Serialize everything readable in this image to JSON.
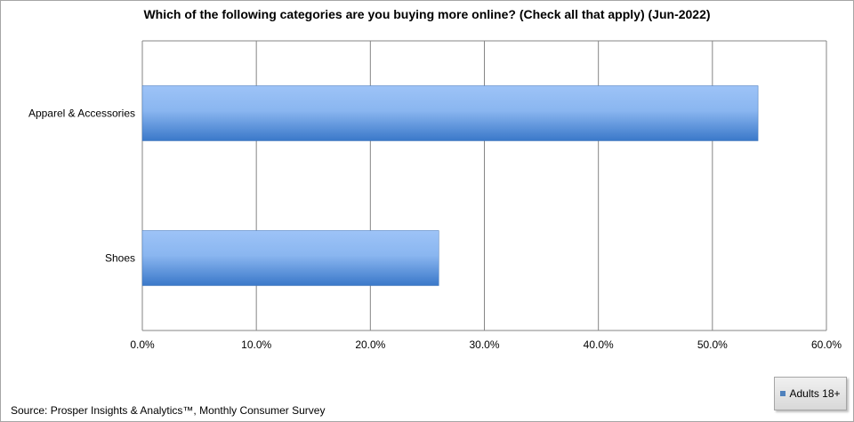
{
  "chart_data": {
    "type": "bar",
    "orientation": "horizontal",
    "title": "Which of the following categories are you buying more online? (Check all that apply) (Jun-2022)",
    "categories": [
      "Apparel & Accessories",
      "Shoes"
    ],
    "series": [
      {
        "name": "Adults 18+",
        "values": [
          54.0,
          26.0
        ]
      }
    ],
    "xlim": [
      0,
      60
    ],
    "x_ticks": [
      "0.0%",
      "10.0%",
      "20.0%",
      "30.0%",
      "40.0%",
      "50.0%",
      "60.0%"
    ],
    "grid": true,
    "legend": "bottom-right",
    "bar_color": "#4f81bd"
  },
  "source": "Source: Prosper Insights & Analytics™, Monthly Consumer Survey"
}
